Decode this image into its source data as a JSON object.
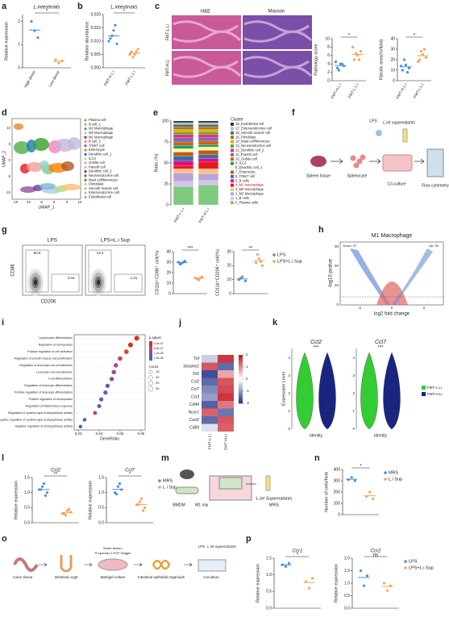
{
  "figure": {
    "panels": [
      "a",
      "b",
      "c",
      "d",
      "e",
      "f",
      "g",
      "h",
      "i",
      "j",
      "k",
      "l",
      "m",
      "n",
      "o",
      "p"
    ],
    "c_images": {
      "headers": [
        "H&E",
        "Masson"
      ],
      "rows": [
        "FMT-L.Li",
        "FMT-H.Li"
      ]
    },
    "umap": {
      "xlabel": "UMAP_1",
      "ylabel": "UMAP_2",
      "xticks": [
        "-15",
        "-10",
        "-5",
        "0",
        "5",
        "10"
      ],
      "yticks": [
        "-10",
        "-5",
        "0",
        "5",
        "10"
      ],
      "clusters": [
        "Plasma cell",
        "B cell_1",
        "M2 Macrophage",
        "M0 Macrophage",
        "M1 Macrophage",
        "B cell_2",
        "T/NKT cell",
        "Enterocyte",
        "Dendritic cell_1",
        "ILC3",
        "Goblet cell",
        "Paneth cell",
        "Dendritic cell_2",
        "Neuroendocrine cell",
        "Mast cell/Monocyte",
        "Fibroblast",
        "Smooth muscle cell",
        "Enteroendocrine cell",
        "Endothelial cell"
      ],
      "colors": [
        "#e8872a",
        "#7fc97f",
        "#4daf4a",
        "#a6cee3",
        "#e41a1c",
        "#f781bf",
        "#984ea3",
        "#ff7f00",
        "#1f78b4",
        "#b2df8a",
        "#fb9a99",
        "#cab2d6",
        "#6a3d9a",
        "#b15928",
        "#33a02c",
        "#fdbf6f",
        "#8dd3c7",
        "#bebada",
        "#80b1d3"
      ]
    },
    "f_diagram": {
      "labels": [
        "Spleen tissue",
        "Splenocyte",
        "LPS",
        "L.int supernatants",
        "Co-culture",
        "Flow cytometry"
      ]
    },
    "g_flow": {
      "titles": [
        "LPS",
        "LPS+L.i Sup"
      ],
      "xlabel": "CD206",
      "ylabel": "CD86",
      "gates": [
        [
          "80.8",
          "3.04"
        ],
        [
          "13.3",
          "1.01"
        ]
      ]
    },
    "volcano": {
      "title": "M1 Macrophage",
      "xlabel": "log2 fold change",
      "ylabel": "-log10 pvalue",
      "down": "Down: 97",
      "up": "Up: 98",
      "xticks": [
        "-2",
        "0",
        "2"
      ],
      "yticks": [
        "0",
        "10",
        "20",
        "30"
      ]
    },
    "violin": {
      "genes": [
        "Ccl2",
        "Ccl7"
      ],
      "ylabel": "Expression Level",
      "xlabel": "Identity",
      "sig": "***",
      "legend": [
        "FMT-L.Li",
        "FMT-H.Li"
      ],
      "colors": [
        "#33cc33",
        "#1a2580"
      ],
      "yticks": [
        "0",
        "1",
        "2",
        "3",
        "4"
      ]
    },
    "m_diagram": {
      "labels": [
        "BMDM",
        "M1 mφ",
        "L.int Supernatants",
        "MRS"
      ]
    },
    "o_diagram": {
      "labels": [
        "Colon tissue",
        "Intestinal crypt",
        "Matrigel culture",
        "Intestinal epithelial organoids",
        "Coculture",
        "Noise factors",
        "R-spondin-1 EGF Noggin",
        "LPS",
        "L.int supernatants"
      ]
    }
  },
  "chart_data": [
    {
      "type": "dot",
      "title": "L.intestinalis",
      "ylabel": "Relative expression",
      "categories": [
        "High donor",
        "Low donor"
      ],
      "colors": [
        "#4a90d9",
        "#f5a55a"
      ],
      "points": [
        [
          2.0,
          1.6,
          1.3
        ],
        [
          0.35,
          0.2,
          0.3
        ]
      ],
      "means": [
        1.63,
        0.28
      ],
      "ylim": [
        0,
        2.3
      ],
      "yticks": [
        0,
        1,
        2
      ],
      "sig": "*"
    },
    {
      "type": "dot",
      "title": "L.intestinalis",
      "ylabel": "Relative abundance",
      "categories": [
        "FMT-H.L.i",
        "FMT-L.L.i"
      ],
      "colors": [
        "#4a90d9",
        "#f5a55a"
      ],
      "points": [
        [
          0.011,
          0.014,
          0.009,
          0.012,
          0.016,
          0.01
        ],
        [
          0.006,
          0.005,
          0.007,
          0.004,
          0.006,
          0.005
        ]
      ],
      "means": [
        0.012,
        0.0055
      ],
      "ylim": [
        0,
        0.02
      ],
      "yticks": [
        {
          "value": 0,
          "label": "0.000"
        },
        0.005,
        {
          "value": 0.01,
          "label": "0.010"
        },
        0.015,
        {
          "value": 0.02,
          "label": "0.020"
        }
      ],
      "sig": "*"
    },
    {
      "type": "dot",
      "ylabel": "Pathology score",
      "categories": [
        "FMT-H.L.i",
        "FMT-L.L.i"
      ],
      "colors": [
        "#4a90d9",
        "#f5a55a"
      ],
      "points": [
        [
          3,
          4,
          3.5,
          2.5,
          4,
          4.5
        ],
        [
          5,
          6,
          7,
          6.5,
          5,
          8
        ]
      ],
      "means": [
        3.6,
        6.25
      ],
      "ylim": [
        0,
        10
      ],
      "yticks": [
        0,
        2,
        4,
        6,
        8,
        10
      ],
      "sig": "*"
    },
    {
      "type": "dot",
      "ylabel": "Fibrotic area(%/field)",
      "categories": [
        "FMT-H.L.i",
        "FMT-L.L.i"
      ],
      "colors": [
        "#4a90d9",
        "#f5a55a"
      ],
      "points": [
        [
          10,
          15,
          12,
          20,
          8,
          14
        ],
        [
          20,
          25,
          22,
          28,
          30,
          18
        ]
      ],
      "means": [
        13.2,
        23.8
      ],
      "ylim": [
        0,
        40
      ],
      "yticks": [
        0,
        10,
        20,
        30,
        40
      ],
      "sig": "*"
    },
    {
      "type": "dot",
      "ylabel": "CD11b⁺CD86⁺ cell(%)",
      "categories": [
        null,
        null
      ],
      "colors": [
        "#4a90d9",
        "#f5a55a"
      ],
      "points": [
        [
          30,
          29,
          31,
          28,
          30
        ],
        [
          15,
          13,
          16,
          14,
          15
        ]
      ],
      "means": [
        29.6,
        14.6
      ],
      "ylim": [
        0,
        40
      ],
      "yticks": [
        0,
        10,
        20,
        30,
        40
      ],
      "sig": "***"
    },
    {
      "type": "dot",
      "ylabel": "CD11b⁺CD206⁺ cell(%)",
      "categories": [
        null,
        null
      ],
      "colors": [
        "#4a90d9",
        "#f5a55a"
      ],
      "points": [
        [
          10,
          12,
          9,
          11
        ],
        [
          22,
          25,
          20,
          28,
          23
        ]
      ],
      "means": [
        10.5,
        23.6
      ],
      "ylim": [
        0,
        30
      ],
      "yticks": [
        0,
        10,
        20,
        30
      ],
      "sig": "**",
      "legend": [
        "LPS",
        "LPS+L.i Sup"
      ]
    },
    {
      "type": "dot",
      "title": "Ccl2",
      "ylabel": "Relative expression",
      "categories": [
        null,
        null
      ],
      "colors": [
        "#4a90d9",
        "#f5a55a"
      ],
      "points": [
        [
          1.1,
          1.3,
          1.0,
          1.2,
          0.9,
          1.1
        ],
        [
          0.3,
          0.4,
          0.35,
          0.25,
          0.45,
          0.3
        ]
      ],
      "means": [
        1.1,
        0.34
      ],
      "ylim": [
        0,
        1.5
      ],
      "yticks": [
        {
          "value": 0,
          "label": "0.0"
        },
        0.5,
        {
          "value": 1,
          "label": "1.0"
        },
        1.5
      ],
      "sig": "**"
    },
    {
      "type": "dot",
      "title": "Ccl7",
      "ylabel": "Relative expression",
      "categories": [
        null,
        null
      ],
      "colors": [
        "#4a90d9",
        "#f5a55a"
      ],
      "points": [
        [
          1.0,
          1.2,
          1.1,
          0.95,
          1.3
        ],
        [
          0.6,
          0.8,
          0.5,
          0.7,
          0.4,
          0.6
        ]
      ],
      "means": [
        1.11,
        0.6
      ],
      "ylim": [
        0,
        1.5
      ],
      "yticks": [
        {
          "value": 0,
          "label": "0.0"
        },
        0.5,
        {
          "value": 1,
          "label": "1.0"
        },
        1.5
      ],
      "sig": "*",
      "legend": [
        "MRS",
        "L.i Sup"
      ]
    },
    {
      "type": "dot",
      "ylabel": "Number of cells/field",
      "categories": [
        null,
        null
      ],
      "colors": [
        "#4a90d9",
        "#f5a55a"
      ],
      "points": [
        [
          310,
          330,
          300
        ],
        [
          160,
          200,
          140
        ]
      ],
      "means": [
        313,
        167
      ],
      "ylim": [
        0,
        400
      ],
      "yticks": [
        0,
        100,
        200,
        300,
        400
      ],
      "sig": "*",
      "legend": [
        "MRS",
        "L.i Sup"
      ]
    },
    {
      "type": "dot",
      "title": "Ccr1",
      "ylabel": "Relative expression",
      "categories": [
        null,
        null
      ],
      "colors": [
        "#4a90d9",
        "#f5a55a"
      ],
      "points": [
        [
          1.3,
          1.25,
          1.35
        ],
        [
          0.8,
          0.6,
          0.9
        ]
      ],
      "means": [
        1.3,
        0.77
      ],
      "ylim": [
        0,
        1.5
      ],
      "yticks": [
        {
          "value": 0,
          "label": "0.0"
        },
        0.5,
        {
          "value": 1,
          "label": "1.0"
        },
        1.5
      ],
      "sig": "*"
    },
    {
      "type": "dot",
      "title": "Ccr2",
      "ylabel": "Relative expression",
      "categories": [
        null,
        null
      ],
      "colors": [
        "#4a90d9",
        "#f5a55a"
      ],
      "points": [
        [
          1.5,
          0.9,
          1.3
        ],
        [
          1.0,
          0.7,
          0.9
        ]
      ],
      "means": [
        1.23,
        0.87
      ],
      "ylim": [
        0,
        2
      ],
      "yticks": [
        {
          "value": 0,
          "label": "0.0"
        },
        0.5,
        {
          "value": 1,
          "label": "1.0"
        },
        1.5,
        {
          "value": 2,
          "label": "2.0"
        }
      ],
      "sig": "ns",
      "legend": [
        "LPS",
        "LPS+L.i Sup"
      ]
    },
    {
      "type": "stacked",
      "ylabel": "Ratio (%)",
      "legend_title": "Cluster",
      "categories": [
        "FMT-L.L.i",
        "FMT-H.L.i"
      ],
      "ylim": [
        0,
        100
      ],
      "yticks": [
        0,
        25,
        50,
        75,
        100
      ],
      "series": [
        {
          "name": "0_Plasma cells",
          "color": "#7fc97f",
          "values": [
            22,
            24
          ]
        },
        {
          "name": "1_B cells",
          "color": "#d4c4ec",
          "values": [
            6,
            5
          ]
        },
        {
          "name": "2_M2 Macrophage",
          "color": "#b7a3d9",
          "values": [
            10,
            8
          ]
        },
        {
          "name": "3_M0 macrophage",
          "color": "#fdc086",
          "values": [
            5,
            6
          ]
        },
        {
          "name": "4_M1 macrophage",
          "color": "#e41a1c",
          "values": [
            4,
            8
          ]
        },
        {
          "name": "5_B cells",
          "color": "#f0027f",
          "values": [
            5,
            4
          ]
        },
        {
          "name": "6_T/NKT cell",
          "color": "#386cb0",
          "values": [
            6,
            5
          ]
        },
        {
          "name": "7_Enterocyte",
          "color": "#bf5b17",
          "values": [
            5,
            5
          ]
        },
        {
          "name": "8_Dendritic cell_1",
          "color": "#ffff99",
          "values": [
            4,
            4
          ]
        },
        {
          "name": "9_ILC3",
          "color": "#1b9e77",
          "values": [
            4,
            3
          ]
        },
        {
          "name": "10_Goblet cell",
          "color": "#d95f02",
          "values": [
            4,
            4
          ]
        },
        {
          "name": "11_Paneth cell",
          "color": "#7570b3",
          "values": [
            5,
            4
          ]
        },
        {
          "name": "12_Dendritic cell_2",
          "color": "#e7298a",
          "values": [
            4,
            4
          ]
        },
        {
          "name": "13_Neuroendocrine cell",
          "color": "#66a61e",
          "values": [
            3,
            3
          ]
        },
        {
          "name": "14_Mast cell/Monocyte",
          "color": "#e6ab02",
          "values": [
            3,
            3
          ]
        },
        {
          "name": "15_Fibroblast",
          "color": "#a6761d",
          "values": [
            3,
            3
          ]
        },
        {
          "name": "16_Smooth muscle cell",
          "color": "#666666",
          "values": [
            3,
            3
          ]
        },
        {
          "name": "17_Enteroendocrine cell",
          "color": "#8dd3c7",
          "values": [
            2,
            2
          ]
        },
        {
          "name": "18_Endothelial cell",
          "color": "#333333",
          "values": [
            2,
            2
          ]
        }
      ]
    },
    {
      "type": "go",
      "xlabel": "GeneRatio",
      "xlim": [
        0.028,
        0.062
      ],
      "xticks": [
        0.03,
        0.04,
        0.05,
        0.06
      ],
      "color_title": "p.adjust",
      "color_ticks": [
        "4.0e-07",
        "8.0e-07",
        "1.2e-06",
        "1.6e-06"
      ],
      "size_title": "Count",
      "size_ticks": [
        15,
        20,
        25,
        30
      ],
      "terms": [
        "Lymphocyte differentiation",
        "Regulation of hemopoiesis",
        "Positive regulation of cell activation",
        "Regulation of smooth muscle cell proliferation",
        "Regulation of leukocyte cell-cell adhesion",
        "Leukocyte cell-cell adhesion",
        "T cell differentiation",
        "Regulation of leukocyte differentiation",
        "Positive regulation of leukocyte differentiation",
        "Positive regulation of hemopoiesis",
        "Regulation of inflammatory response",
        "Regulation of cysteine-type endopeptidase activity",
        "Negative regulation of cysteine-type endopeptidase activity",
        "Negative regulation of endopeptidase activity"
      ],
      "values": [
        0.058,
        0.055,
        0.053,
        0.05,
        0.048,
        0.047,
        0.046,
        0.044,
        0.043,
        0.041,
        0.04,
        0.038,
        0.033,
        0.031
      ],
      "counts": [
        30,
        29,
        28,
        26,
        25,
        25,
        24,
        23,
        23,
        22,
        21,
        20,
        17,
        16
      ],
      "colors": [
        "#d7301f",
        "#d7301f",
        "#e34a33",
        "#c2446e",
        "#9e4a8a",
        "#9e4a8a",
        "#8a4f98",
        "#7454a5",
        "#7454a5",
        "#5e5ab3",
        "#5e5ab3",
        "#c2446e",
        "#4a60c0",
        "#3a66cc"
      ]
    },
    {
      "type": "heatmap",
      "rows": [
        "Tnf",
        "Serpine1",
        "Tlr6",
        "Ccl2",
        "Ccl7",
        "Ccl3",
        "Cd44",
        "Ncor1",
        "Cxcl2",
        "Cd83"
      ],
      "columns": [
        "FMT-L.Li",
        "FMT-H.Li"
      ],
      "values": [
        [
          -0.5,
          1.8
        ],
        [
          1.5,
          -1.5
        ],
        [
          -1.8,
          0.8
        ],
        [
          -1.5,
          1.5
        ],
        [
          -1.2,
          1.6
        ],
        [
          -1,
          1.8
        ],
        [
          -1.6,
          1.2
        ],
        [
          1.4,
          -1.4
        ],
        [
          -1.5,
          1.5
        ],
        [
          -0.3,
          1.4
        ]
      ],
      "clim": [
        -2,
        2
      ],
      "cticks": [
        2,
        1,
        0,
        -1,
        -2
      ]
    }
  ]
}
